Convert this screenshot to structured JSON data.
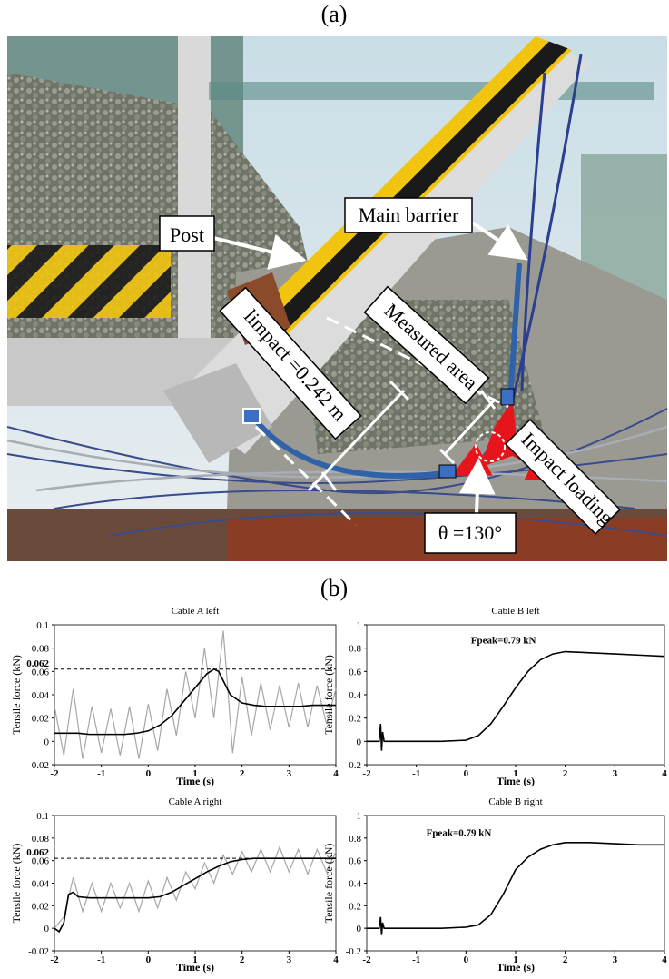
{
  "panel_a": {
    "label": "(a)",
    "annotations": {
      "post": "Post",
      "main_barrier": "Main barrier",
      "impact_length": "limpact =0.242 m",
      "measured_area": "Measured area",
      "impact_loading": "Impact loading",
      "angle": "θ =130°"
    }
  },
  "panel_b": {
    "label": "(b)"
  },
  "chart_data": [
    {
      "type": "line",
      "title": "Cable A left",
      "xlabel": "Time (s)",
      "ylabel": "Tensile force (kN)",
      "xlim": [
        -2,
        4
      ],
      "xticks": [
        -2,
        -1,
        0,
        1,
        2,
        3,
        4
      ],
      "ylim": [
        -0.02,
        0.1
      ],
      "yticks": [
        -0.02,
        0,
        0.02,
        0.04,
        0.06,
        0.08,
        0.1
      ],
      "hline": 0.062,
      "series": [
        {
          "color": "#a6a6a6",
          "x": [
            -2,
            -1.8,
            -1.6,
            -1.4,
            -1.2,
            -1,
            -0.8,
            -0.6,
            -0.4,
            -0.2,
            0,
            0.2,
            0.4,
            0.6,
            0.8,
            1,
            1.2,
            1.4,
            1.6,
            1.8,
            2,
            2.2,
            2.4,
            2.6,
            2.8,
            3,
            3.2,
            3.4,
            3.6,
            3.8,
            4
          ],
          "values": [
            0.03,
            -0.012,
            0.045,
            -0.015,
            0.03,
            -0.01,
            0.028,
            -0.012,
            0.03,
            -0.015,
            0.032,
            -0.008,
            0.045,
            0.005,
            0.06,
            0.02,
            0.08,
            0.02,
            0.095,
            -0.01,
            0.055,
            0.005,
            0.05,
            0.01,
            0.048,
            0.012,
            0.05,
            0.012,
            0.048,
            0.015,
            0.045
          ]
        },
        {
          "color": "#000000",
          "x": [
            -2,
            -1.75,
            -1.5,
            -1.25,
            -1,
            -0.75,
            -0.5,
            -0.25,
            0,
            0.25,
            0.5,
            0.75,
            1,
            1.25,
            1.4,
            1.5,
            1.75,
            2,
            2.25,
            2.5,
            2.75,
            3,
            3.25,
            3.5,
            3.75,
            4
          ],
          "values": [
            0.007,
            0.007,
            0.007,
            0.006,
            0.006,
            0.006,
            0.006,
            0.007,
            0.009,
            0.014,
            0.022,
            0.034,
            0.046,
            0.058,
            0.062,
            0.06,
            0.04,
            0.033,
            0.031,
            0.03,
            0.03,
            0.03,
            0.03,
            0.031,
            0.031,
            0.031
          ]
        }
      ]
    },
    {
      "type": "line",
      "title": "Cable B left",
      "xlabel": "Time (s)",
      "ylabel": "Tensile force (kN)",
      "annotation": "Fpeak=0.79 kN",
      "xlim": [
        -2,
        4
      ],
      "xticks": [
        -2,
        -1,
        0,
        1,
        2,
        3,
        4
      ],
      "ylim": [
        -0.2,
        1
      ],
      "yticks": [
        -0.2,
        0,
        0.2,
        0.4,
        0.6,
        0.8,
        1
      ],
      "series": [
        {
          "color": "#000000",
          "x": [
            -2,
            -1.75,
            -1.72,
            -1.7,
            -1.68,
            -1.65,
            -1.5,
            -1,
            -0.5,
            0,
            0.25,
            0.5,
            0.75,
            1,
            1.25,
            1.5,
            1.75,
            2,
            2.5,
            3,
            3.5,
            4
          ],
          "values": [
            0,
            0,
            0.15,
            -0.08,
            0.08,
            0,
            0,
            0,
            0,
            0.01,
            0.05,
            0.15,
            0.3,
            0.46,
            0.6,
            0.7,
            0.75,
            0.77,
            0.76,
            0.75,
            0.74,
            0.73
          ]
        }
      ]
    },
    {
      "type": "line",
      "title": "Cable A right",
      "xlabel": "Time (s)",
      "ylabel": "Tensile force (kN)",
      "xlim": [
        -2,
        4
      ],
      "xticks": [
        -2,
        -1,
        0,
        1,
        2,
        3,
        4
      ],
      "ylim": [
        -0.02,
        0.1
      ],
      "yticks": [
        -0.02,
        0,
        0.02,
        0.04,
        0.06,
        0.08,
        0.1
      ],
      "hline": 0.062,
      "series": [
        {
          "color": "#a6a6a6",
          "x": [
            -2,
            -1.8,
            -1.6,
            -1.4,
            -1.2,
            -1,
            -0.8,
            -0.6,
            -0.4,
            -0.2,
            0,
            0.2,
            0.4,
            0.6,
            0.8,
            1,
            1.2,
            1.4,
            1.6,
            1.8,
            2,
            2.2,
            2.4,
            2.6,
            2.8,
            3,
            3.2,
            3.4,
            3.6,
            3.8,
            4
          ],
          "values": [
            0,
            0.01,
            0.045,
            0.015,
            0.04,
            0.015,
            0.04,
            0.018,
            0.04,
            0.015,
            0.042,
            0.018,
            0.045,
            0.025,
            0.05,
            0.035,
            0.058,
            0.04,
            0.065,
            0.048,
            0.068,
            0.05,
            0.07,
            0.05,
            0.072,
            0.05,
            0.07,
            0.048,
            0.07,
            0.05,
            0.068
          ]
        },
        {
          "color": "#000000",
          "x": [
            -2,
            -1.9,
            -1.8,
            -1.7,
            -1.6,
            -1.5,
            -1.25,
            -1,
            -0.5,
            0,
            0.25,
            0.5,
            0.75,
            1,
            1.25,
            1.5,
            1.75,
            2,
            2.25,
            2.5,
            3,
            3.5,
            4
          ],
          "values": [
            0,
            -0.003,
            0.005,
            0.03,
            0.032,
            0.028,
            0.027,
            0.027,
            0.027,
            0.027,
            0.028,
            0.032,
            0.038,
            0.044,
            0.05,
            0.055,
            0.059,
            0.061,
            0.062,
            0.062,
            0.062,
            0.062,
            0.062
          ]
        }
      ]
    },
    {
      "type": "line",
      "title": "Cable B right",
      "xlabel": "Time (s)",
      "ylabel": "Tensile force (kN)",
      "annotation": "Fpeak=0.79 kN",
      "xlim": [
        -2,
        4
      ],
      "xticks": [
        -2,
        -1,
        0,
        1,
        2,
        3,
        4
      ],
      "ylim": [
        -0.2,
        1
      ],
      "yticks": [
        -0.2,
        0,
        0.2,
        0.4,
        0.6,
        0.8,
        1
      ],
      "series": [
        {
          "color": "#000000",
          "x": [
            -2,
            -1.75,
            -1.72,
            -1.7,
            -1.68,
            -1.65,
            -1.5,
            -1,
            -0.5,
            0,
            0.25,
            0.5,
            0.75,
            1,
            1.25,
            1.5,
            1.75,
            2,
            2.5,
            3,
            3.5,
            4
          ],
          "values": [
            0,
            0,
            0.1,
            -0.06,
            0.05,
            0,
            0,
            0,
            0,
            0.01,
            0.03,
            0.12,
            0.3,
            0.52,
            0.63,
            0.7,
            0.74,
            0.76,
            0.76,
            0.75,
            0.74,
            0.74
          ]
        }
      ]
    }
  ]
}
